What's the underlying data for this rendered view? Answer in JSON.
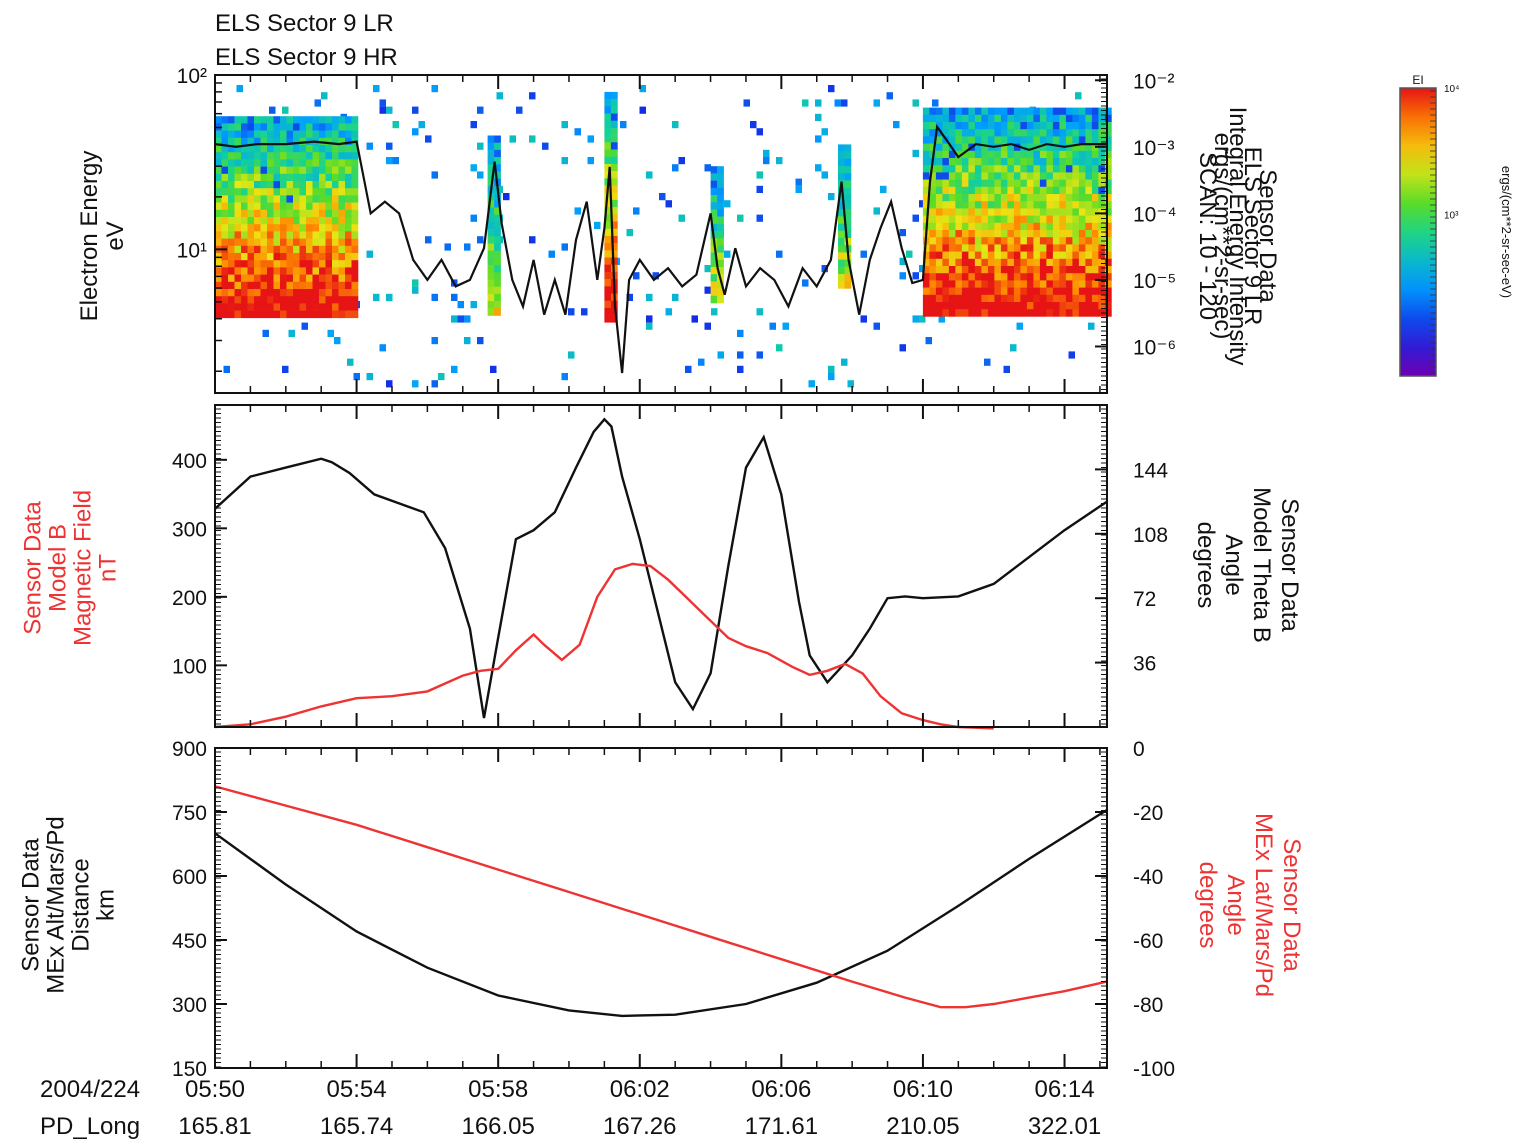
{
  "header": {
    "line1": "ELS Sector 9 LR",
    "line2": "ELS Sector 9 HR"
  },
  "time_axis": {
    "date_label": "2004/224",
    "ticks": [
      "05:50",
      "05:54",
      "05:58",
      "06:02",
      "06:06",
      "06:10",
      "06:14"
    ],
    "range_minutes": [
      0,
      25.2
    ],
    "pd_long_label": "PD_Long",
    "pd_long_values": [
      "165.81",
      "165.74",
      "166.05",
      "167.26",
      "171.61",
      "210.05",
      "322.01"
    ]
  },
  "colorbar": {
    "label": "EI",
    "tick_labels": [
      "10⁴",
      "10³"
    ],
    "tick_fracs": [
      1.0,
      0.56
    ],
    "unit_label": "ergs/(cm**2-sr-sec-eV)"
  },
  "colors": {
    "black_series": "#111111",
    "red_series": "#ee3333",
    "ylabel_red": "#ee3333"
  },
  "chart_data": [
    {
      "type": "heatmap",
      "left_axis": {
        "label_lines": [
          "Electron Energy",
          "eV"
        ],
        "scale": "log",
        "range": [
          1.5,
          100
        ],
        "tick_values": [
          10,
          100
        ],
        "tick_labels": [
          "10¹",
          "10²"
        ]
      },
      "right_axis": {
        "label_lines": [
          "Sensor Data",
          "ELS Sector 9 LR",
          "Integral Energy Intensity",
          "ergs/(cm**2-sr-sec)",
          "SCAN: 10 - 120"
        ],
        "scale": "log",
        "range": [
          2e-07,
          0.012
        ],
        "tick_values": [
          0.01,
          0.001,
          0.0001,
          1e-05,
          1e-06
        ],
        "tick_labels": [
          "10⁻²",
          "10⁻³",
          "10⁻⁴",
          "10⁻⁵",
          "10⁻⁶"
        ]
      },
      "spectrogram_bands": [
        {
          "t": [
            0,
            4
          ],
          "e_range": [
            4.2,
            58
          ],
          "intensity": "high"
        },
        {
          "t": [
            20,
            25.2
          ],
          "e_range": [
            4.2,
            65
          ],
          "intensity": "high"
        },
        {
          "t": [
            7.7,
            8.0
          ],
          "e_range": [
            4.5,
            45
          ],
          "intensity": "medium"
        },
        {
          "t": [
            11.0,
            11.3
          ],
          "e_range": [
            4.0,
            80
          ],
          "intensity": "high"
        },
        {
          "t": [
            17.6,
            17.9
          ],
          "e_range": [
            6,
            40
          ],
          "intensity": "medium"
        },
        {
          "t": [
            14.0,
            14.2
          ],
          "e_range": [
            5,
            30
          ],
          "intensity": "medium"
        }
      ],
      "integral_intensity": {
        "t": [
          0,
          0.6,
          1.2,
          2.0,
          2.8,
          3.5,
          4.0,
          4.4,
          4.8,
          5.2,
          5.6,
          6.0,
          6.4,
          6.8,
          7.2,
          7.6,
          7.9,
          8.1,
          8.4,
          8.7,
          9.0,
          9.3,
          9.6,
          9.9,
          10.2,
          10.5,
          10.8,
          11.0,
          11.15,
          11.3,
          11.5,
          11.7,
          12.0,
          12.4,
          12.8,
          13.2,
          13.6,
          14.0,
          14.2,
          14.4,
          14.7,
          15.0,
          15.4,
          15.8,
          16.2,
          16.6,
          17.0,
          17.4,
          17.7,
          17.9,
          18.2,
          18.5,
          18.8,
          19.1,
          19.4,
          19.7,
          20.0,
          20.2,
          20.4,
          20.7,
          21.0,
          21.5,
          22.0,
          22.5,
          23.0,
          23.5,
          24.0,
          24.5,
          25.2
        ],
        "values": [
          0.0011,
          0.001,
          0.0011,
          0.0011,
          0.0012,
          0.0011,
          0.0012,
          0.0001,
          0.00015,
          0.0001,
          2e-05,
          1e-05,
          2e-05,
          8e-06,
          1e-05,
          3e-05,
          0.0006,
          7e-05,
          1e-05,
          4e-06,
          2e-05,
          3e-06,
          1e-05,
          3e-06,
          4e-05,
          0.00015,
          1e-05,
          6e-05,
          0.0005,
          4e-06,
          4e-07,
          1e-05,
          2e-05,
          1e-05,
          1.5e-05,
          8e-06,
          1.2e-05,
          0.0001,
          1.5e-05,
          6e-06,
          3e-05,
          8e-06,
          1.5e-05,
          1e-05,
          4e-06,
          1.5e-05,
          8e-06,
          2e-05,
          0.0003,
          2e-05,
          3e-06,
          2e-05,
          6e-05,
          0.00015,
          3e-05,
          9e-06,
          1e-05,
          0.0003,
          0.002,
          0.0012,
          0.0007,
          0.0011,
          0.001,
          0.0011,
          0.0009,
          0.0011,
          0.001,
          0.0011,
          0.0011
        ]
      }
    },
    {
      "type": "line",
      "left_axis": {
        "label_lines": [
          "Sensor Data",
          "Model B",
          "Magnetic Field",
          "nT"
        ],
        "range": [
          10,
          480
        ],
        "tick_values": [
          100,
          200,
          300,
          400
        ],
        "tick_labels": [
          "100",
          "200",
          "300",
          "400"
        ]
      },
      "right_axis": {
        "label_lines": [
          "Sensor Data",
          "Model Theta B",
          "Angle",
          "degrees"
        ],
        "range": [
          0,
          180
        ],
        "tick_values": [
          36,
          72,
          108,
          144
        ],
        "tick_labels": [
          "36",
          "72",
          "108",
          "144"
        ]
      },
      "series": [
        {
          "axis": "right",
          "color": "black",
          "t": [
            0,
            1,
            2,
            3,
            3.3,
            3.8,
            4.5,
            5.2,
            5.9,
            6.5,
            7.2,
            7.6,
            8.0,
            8.5,
            9.0,
            9.6,
            10.2,
            10.7,
            11.0,
            11.2,
            11.5,
            12.0,
            12.5,
            13.0,
            13.5,
            14.0,
            14.5,
            15.0,
            15.5,
            16.0,
            16.5,
            16.8,
            17.3,
            18.0,
            18.5,
            19.0,
            19.5,
            20.0,
            21.0,
            22.0,
            23.0,
            24.0,
            25.2
          ],
          "values": [
            122,
            140,
            145,
            150,
            148,
            142,
            130,
            125,
            120,
            100,
            55,
            5,
            50,
            105,
            110,
            120,
            145,
            165,
            172,
            168,
            140,
            105,
            65,
            25,
            10,
            30,
            90,
            145,
            162,
            130,
            70,
            40,
            25,
            40,
            55,
            72,
            73,
            72,
            73,
            80,
            95,
            110,
            126
          ]
        },
        {
          "axis": "left",
          "color": "red",
          "t": [
            0,
            1,
            2,
            3,
            4,
            5,
            6,
            7,
            7.5,
            8,
            8.5,
            9,
            9.3,
            9.8,
            10.3,
            10.8,
            11.3,
            11.8,
            12.3,
            12.8,
            13.3,
            13.8,
            14.5,
            15,
            15.6,
            16.3,
            16.8,
            17.3,
            17.8,
            18.3,
            18.8,
            19.4,
            20.0,
            20.5,
            21.0,
            21.5,
            22.0
          ],
          "values": [
            10,
            14,
            25,
            40,
            52,
            55,
            62,
            85,
            92,
            95,
            122,
            145,
            130,
            108,
            130,
            200,
            240,
            248,
            245,
            225,
            200,
            175,
            140,
            128,
            118,
            98,
            86,
            92,
            102,
            88,
            55,
            30,
            20,
            14,
            10,
            9,
            8
          ]
        }
      ]
    },
    {
      "type": "line",
      "left_axis": {
        "label_lines": [
          "Sensor Data",
          "MEx Alt/Mars/Pd",
          "Distance",
          "km"
        ],
        "range": [
          150,
          900
        ],
        "tick_values": [
          150,
          300,
          450,
          600,
          750,
          900
        ],
        "tick_labels": [
          "150",
          "300",
          "450",
          "600",
          "750",
          "900"
        ]
      },
      "right_axis": {
        "label_lines": [
          "Sensor Data",
          "MEx Lat/Mars/Pd",
          "Angle",
          "degrees"
        ],
        "range": [
          -100,
          0
        ],
        "tick_values": [
          0,
          -20,
          -40,
          -60,
          -80,
          -100
        ],
        "tick_labels": [
          "0",
          "-20",
          "-40",
          "-60",
          "-80",
          "-100"
        ]
      },
      "series": [
        {
          "axis": "left",
          "color": "black",
          "t": [
            0,
            2,
            4,
            6,
            8,
            10,
            11.5,
            13,
            15,
            17,
            19,
            21,
            23,
            25.2
          ],
          "values": [
            700,
            580,
            470,
            385,
            320,
            285,
            272,
            275,
            300,
            350,
            425,
            530,
            640,
            755
          ]
        },
        {
          "axis": "right",
          "color": "red",
          "t": [
            0,
            2,
            4,
            6,
            8,
            10,
            12,
            14,
            16,
            18,
            19.5,
            20.5,
            21.2,
            22,
            23,
            24,
            25.2
          ],
          "values": [
            -12,
            -18,
            -24,
            -31,
            -38,
            -45,
            -52,
            -59,
            -66,
            -73,
            -78,
            -81,
            -81,
            -80,
            -78,
            -76,
            -73
          ]
        }
      ]
    }
  ]
}
